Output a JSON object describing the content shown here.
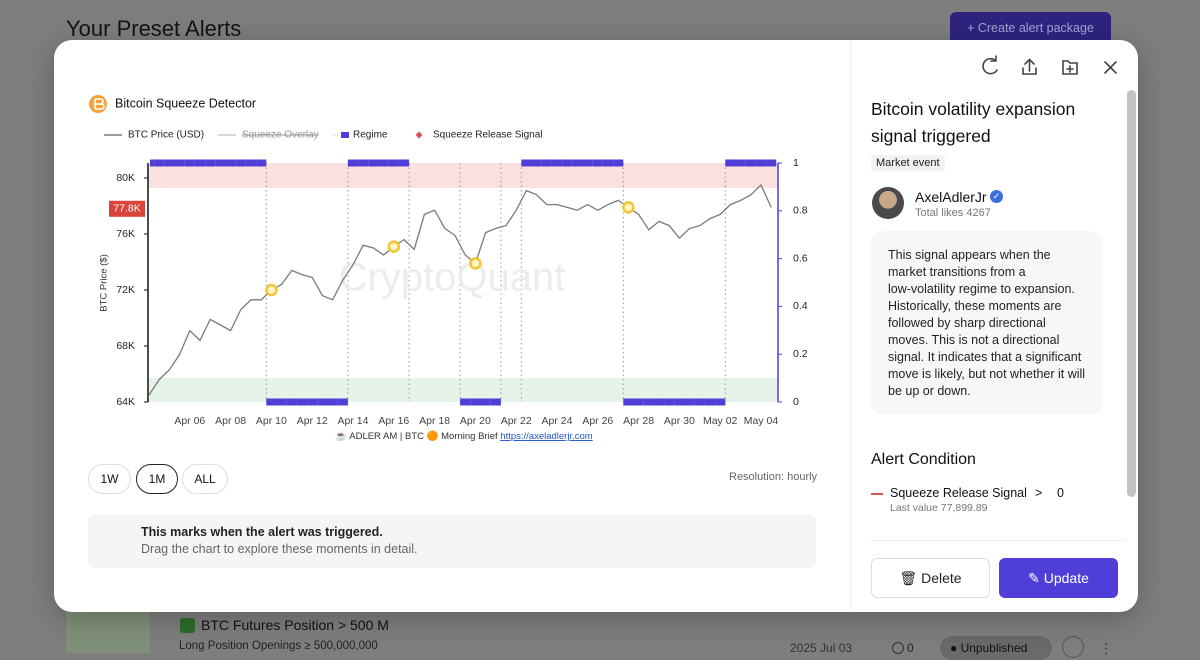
{
  "page": {
    "title": "Your Preset Alerts",
    "create_button": "Create alert package"
  },
  "list_item": {
    "title": "BTC Futures Position > 500 M",
    "subtitle": "Long Position Openings ≥ 500,000,000",
    "date": "2025 Jul 03",
    "count": "0",
    "status": "Unpublished"
  },
  "chart_data": {
    "type": "line",
    "title": "Bitcoin Squeeze Detector",
    "y_label": "BTC Price ($)",
    "watermark": "CryptoQuant",
    "source": "☕ ADLER AM | BTC 🟠 Morning Brief ",
    "source_link": "https://axeladlerjr.com",
    "categories": [
      null,
      null,
      null,
      null,
      "Apr 06",
      null,
      null,
      null,
      "Apr 08",
      null,
      null,
      null,
      "Apr 10",
      null,
      null,
      null,
      "Apr 12",
      null,
      null,
      null,
      "Apr 14",
      null,
      null,
      null,
      "Apr 16",
      null,
      null,
      null,
      "Apr 18",
      null,
      null,
      null,
      "Apr 20",
      null,
      null,
      null,
      "Apr 22",
      null,
      null,
      null,
      "Apr 24",
      null,
      null,
      null,
      "Apr 26",
      null,
      null,
      null,
      "Apr 28",
      null,
      null,
      null,
      "Apr 30",
      null,
      null,
      null,
      "May 02",
      null,
      null,
      null,
      "May 04",
      null
    ],
    "series": [
      {
        "name": "BTC Price (USD)",
        "mark": "line",
        "color": "#7a7a7a",
        "values": [
          64500,
          65600,
          66300,
          67400,
          69100,
          68400,
          69900,
          69500,
          69100,
          70600,
          71300,
          71300,
          72000,
          72400,
          73400,
          73100,
          72900,
          71600,
          71300,
          72700,
          73800,
          75200,
          75000,
          74500,
          75100,
          75600,
          74900,
          77400,
          77700,
          76400,
          75900,
          74500,
          73900,
          76100,
          76400,
          76600,
          77700,
          79100,
          78800,
          78100,
          78100,
          77900,
          77700,
          78100,
          77700,
          78100,
          78400,
          77900,
          77400,
          76300,
          76900,
          76600,
          75700,
          76400,
          76600,
          77100,
          77400,
          78100,
          78400,
          78800,
          79500,
          77900
        ]
      },
      {
        "name": "Squeeze Overlay",
        "mark": "line",
        "color": "#c8c8c8",
        "visible": false
      },
      {
        "name": "Regime",
        "mark": "regime",
        "axis": "y2",
        "color": "#4f3fd8",
        "values": [
          1,
          1,
          1,
          1,
          1,
          1,
          1,
          1,
          1,
          1,
          1,
          1,
          0,
          0,
          0,
          0,
          0,
          0,
          0,
          0,
          1,
          1,
          1,
          1,
          1,
          1,
          null,
          null,
          null,
          null,
          null,
          0,
          0,
          0,
          0,
          null,
          null,
          1,
          1,
          1,
          1,
          1,
          1,
          1,
          1,
          1,
          1,
          0,
          0,
          0,
          0,
          0,
          0,
          0,
          0,
          0,
          0,
          1,
          1,
          1,
          1,
          1
        ]
      },
      {
        "name": "Squeeze Release Signal",
        "mark": "signal",
        "color": "#d9534f",
        "marker_color": "#f4c430",
        "values": [
          null,
          null,
          null,
          null,
          null,
          null,
          null,
          null,
          null,
          null,
          null,
          null,
          72000,
          null,
          null,
          null,
          null,
          null,
          null,
          null,
          null,
          null,
          null,
          null,
          75100,
          null,
          null,
          null,
          null,
          null,
          null,
          null,
          73900,
          null,
          null,
          null,
          null,
          null,
          null,
          null,
          null,
          null,
          null,
          null,
          null,
          null,
          null,
          77900,
          null,
          null,
          null,
          null,
          null,
          null,
          null,
          null,
          null,
          null,
          null,
          null,
          null,
          null
        ]
      }
    ],
    "ylim": [
      64000,
      81070
    ],
    "yticks": [
      {
        "value": 64000,
        "label": "64K"
      },
      {
        "value": 68000,
        "label": "68K"
      },
      {
        "value": 72000,
        "label": "72K"
      },
      {
        "value": 76000,
        "label": "76K"
      },
      {
        "value": 80000,
        "label": "80K"
      }
    ],
    "y2lim": [
      0,
      1
    ],
    "y2ticks": [
      0,
      0.2,
      0.4,
      0.6,
      0.8,
      1
    ],
    "price_marker": {
      "value": 77800,
      "label": "77.8K",
      "color": "#d9443b"
    }
  },
  "controls": {
    "ranges": [
      "1W",
      "1M",
      "ALL"
    ],
    "selected_range": 1,
    "resolution": "Resolution: hourly"
  },
  "notice": {
    "title": "This marks when the alert was triggered.",
    "text": "Drag the chart to explore these moments in detail."
  },
  "panel": {
    "title": "Bitcoin volatility expansion signal triggered",
    "tag": "Market event",
    "author": "AxelAdlerJr",
    "likes": "Total likes 4267",
    "description": [
      "This signal appears when the",
      "market transitions from a",
      "low-volatility regime to expansion.",
      "Historically, these moments are",
      "followed by sharp directional",
      "moves. This is not a directional",
      "signal. It indicates that a significant",
      "move is likely, but not whether it will",
      "be up or down."
    ],
    "condition_heading": "Alert Condition",
    "condition": {
      "metric": "Squeeze Release Signal",
      "operator": ">",
      "threshold": "0",
      "last_value": "Last value 77,899.89"
    },
    "delete": "Delete",
    "update": "Update"
  }
}
